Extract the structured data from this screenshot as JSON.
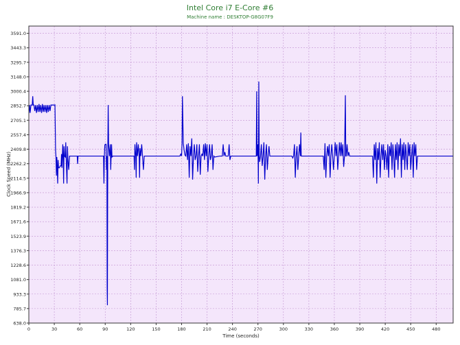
{
  "chart_data": {
    "type": "line",
    "title": "Intel Core i7 E-Core #6",
    "subtitle": "Machine name : DESKTOP-G8G07F9",
    "xlabel": "Time (seconds)",
    "ylabel": "Clock Speed (MHz)",
    "xlim": [
      0,
      500
    ],
    "ylim": [
      638.0,
      3665.0
    ],
    "x_ticks": [
      "0",
      "30",
      "60",
      "90",
      "120",
      "150",
      "180",
      "210",
      "240",
      "270",
      "300",
      "330",
      "360",
      "390",
      "420",
      "450",
      "480"
    ],
    "y_ticks": [
      "638.0",
      "785.7",
      "933.3",
      "1081.0",
      "1228.6",
      "1376.3",
      "1523.9",
      "1671.6",
      "1819.2",
      "1966.9",
      "2114.5",
      "2262.2",
      "2409.8",
      "2557.4",
      "2705.1",
      "2852.7",
      "3000.4",
      "3148.0",
      "3295.7",
      "3443.3",
      "3591.0"
    ],
    "grid": true,
    "colors": {
      "line": "#0000cc",
      "plot_bg": "#f4e6fb",
      "grid": "#c090d0",
      "title": "#2e7d32"
    },
    "series": [
      {
        "values": [
          [
            0,
            2780
          ],
          [
            0.8,
            2860
          ],
          [
            1.5,
            2780
          ],
          [
            2.5,
            2860
          ],
          [
            4,
            2860
          ],
          [
            4.6,
            2950
          ],
          [
            5.2,
            2860
          ],
          [
            6,
            2860
          ],
          [
            7,
            2800
          ],
          [
            8,
            2860
          ],
          [
            9,
            2780
          ],
          [
            10,
            2860
          ],
          [
            11,
            2790
          ],
          [
            12,
            2870
          ],
          [
            13,
            2790
          ],
          [
            14,
            2860
          ],
          [
            15,
            2780
          ],
          [
            16,
            2870
          ],
          [
            17,
            2790
          ],
          [
            18,
            2860
          ],
          [
            19,
            2790
          ],
          [
            20,
            2860
          ],
          [
            21,
            2780
          ],
          [
            22,
            2860
          ],
          [
            23,
            2790
          ],
          [
            24,
            2860
          ],
          [
            25,
            2800
          ],
          [
            26,
            2860
          ],
          [
            27,
            2860
          ],
          [
            28,
            2860
          ],
          [
            29,
            2860
          ],
          [
            30,
            2860
          ],
          [
            30.8,
            2862
          ],
          [
            31.5,
            2400
          ],
          [
            32,
            2330
          ],
          [
            32.5,
            2140
          ],
          [
            33,
            2330
          ],
          [
            33.5,
            2220
          ],
          [
            34,
            2060
          ],
          [
            34.5,
            2300
          ],
          [
            35,
            2220
          ],
          [
            36,
            2220
          ],
          [
            37,
            2240
          ],
          [
            38,
            2240
          ],
          [
            38.5,
            2360
          ],
          [
            39,
            2220
          ],
          [
            40,
            2460
          ],
          [
            40.5,
            2320
          ],
          [
            41,
            2060
          ],
          [
            41.5,
            2440
          ],
          [
            42,
            2340
          ],
          [
            43,
            2330
          ],
          [
            43.5,
            2480
          ],
          [
            44,
            2320
          ],
          [
            45,
            2060
          ],
          [
            45.5,
            2440
          ],
          [
            46,
            2320
          ],
          [
            47,
            2200
          ],
          [
            48,
            2340
          ],
          [
            50,
            2340
          ],
          [
            56,
            2340
          ],
          [
            57,
            2340
          ],
          [
            57.5,
            2260
          ],
          [
            58,
            2340
          ],
          [
            60,
            2340
          ],
          [
            62,
            2340
          ],
          [
            75,
            2340
          ],
          [
            80,
            2340
          ],
          [
            87,
            2340
          ],
          [
            88,
            2340
          ],
          [
            88.5,
            2060
          ],
          [
            89,
            2340
          ],
          [
            89.5,
            2450
          ],
          [
            90,
            2460
          ],
          [
            91,
            2460
          ],
          [
            91.5,
            2200
          ],
          [
            92,
            2340
          ],
          [
            92.3,
            1000
          ],
          [
            92.6,
            820
          ],
          [
            93,
            2340
          ],
          [
            93.5,
            2860
          ],
          [
            94,
            2460
          ],
          [
            95,
            2340
          ],
          [
            96,
            2460
          ],
          [
            96.5,
            2200
          ],
          [
            97,
            2340
          ],
          [
            97.5,
            2460
          ],
          [
            98,
            2330
          ],
          [
            99,
            2340
          ],
          [
            102,
            2340
          ],
          [
            112,
            2340
          ],
          [
            122,
            2340
          ],
          [
            124,
            2340
          ],
          [
            124.5,
            2200
          ],
          [
            125,
            2460
          ],
          [
            126,
            2340
          ],
          [
            126.5,
            2120
          ],
          [
            127,
            2480
          ],
          [
            128,
            2340
          ],
          [
            129,
            2460
          ],
          [
            130,
            2340
          ],
          [
            130.5,
            2120
          ],
          [
            131,
            2420
          ],
          [
            132,
            2340
          ],
          [
            133,
            2460
          ],
          [
            134,
            2340
          ],
          [
            135,
            2200
          ],
          [
            136,
            2340
          ],
          [
            140,
            2340
          ],
          [
            150,
            2340
          ],
          [
            160,
            2340
          ],
          [
            170,
            2340
          ],
          [
            178,
            2340
          ],
          [
            179,
            2360
          ],
          [
            180,
            2340
          ],
          [
            180.5,
            2460
          ],
          [
            181,
            2950
          ],
          [
            182,
            2470
          ],
          [
            183,
            2400
          ],
          [
            184,
            2350
          ],
          [
            185,
            2340
          ],
          [
            186,
            2460
          ],
          [
            187,
            2300
          ],
          [
            188,
            2470
          ],
          [
            189,
            2120
          ],
          [
            190,
            2440
          ],
          [
            191,
            2340
          ],
          [
            192,
            2520
          ],
          [
            193,
            2100
          ],
          [
            194,
            2340
          ],
          [
            195,
            2460
          ],
          [
            196,
            2300
          ],
          [
            197,
            2340
          ],
          [
            198,
            2460
          ],
          [
            199,
            2180
          ],
          [
            200,
            2340
          ],
          [
            201,
            2460
          ],
          [
            202,
            2150
          ],
          [
            203,
            2340
          ],
          [
            204,
            2360
          ],
          [
            205,
            2340
          ],
          [
            206,
            2460
          ],
          [
            207,
            2300
          ],
          [
            208,
            2470
          ],
          [
            209,
            2340
          ],
          [
            210,
            2460
          ],
          [
            211,
            2180
          ],
          [
            212,
            2340
          ],
          [
            213,
            2460
          ],
          [
            214,
            2300
          ],
          [
            215,
            2340
          ],
          [
            216,
            2460
          ],
          [
            217,
            2200
          ],
          [
            218,
            2340
          ],
          [
            219,
            2330
          ],
          [
            225,
            2340
          ],
          [
            228,
            2340
          ],
          [
            229,
            2460
          ],
          [
            230,
            2340
          ],
          [
            231,
            2380
          ],
          [
            232,
            2340
          ],
          [
            235,
            2340
          ],
          [
            236,
            2460
          ],
          [
            237,
            2300
          ],
          [
            238,
            2340
          ],
          [
            245,
            2340
          ],
          [
            255,
            2340
          ],
          [
            265,
            2340
          ],
          [
            268,
            2340
          ],
          [
            268.5,
            3000
          ],
          [
            269,
            2340
          ],
          [
            270,
            2460
          ],
          [
            270.5,
            2060
          ],
          [
            271,
            3100
          ],
          [
            271.5,
            2340
          ],
          [
            272,
            2280
          ],
          [
            273,
            2340
          ],
          [
            274,
            2460
          ],
          [
            275,
            2240
          ],
          [
            276,
            2340
          ],
          [
            277,
            2480
          ],
          [
            278,
            2100
          ],
          [
            279,
            2340
          ],
          [
            280,
            2460
          ],
          [
            281,
            2200
          ],
          [
            282,
            2340
          ],
          [
            283,
            2440
          ],
          [
            284,
            2340
          ],
          [
            290,
            2340
          ],
          [
            305,
            2340
          ],
          [
            310,
            2340
          ],
          [
            311,
            2320
          ],
          [
            312,
            2340
          ],
          [
            313,
            2460
          ],
          [
            314,
            2120
          ],
          [
            315,
            2340
          ],
          [
            316,
            2440
          ],
          [
            317,
            2200
          ],
          [
            318,
            2340
          ],
          [
            319,
            2460
          ],
          [
            320,
            2340
          ],
          [
            320.5,
            2580
          ],
          [
            321,
            2340
          ],
          [
            330,
            2340
          ],
          [
            340,
            2340
          ],
          [
            347,
            2340
          ],
          [
            348,
            2200
          ],
          [
            349,
            2470
          ],
          [
            350,
            2120
          ],
          [
            351,
            2340
          ],
          [
            352,
            2440
          ],
          [
            353,
            2340
          ],
          [
            354,
            2460
          ],
          [
            355,
            2120
          ],
          [
            356,
            2340
          ],
          [
            357,
            2460
          ],
          [
            358,
            2340
          ],
          [
            359,
            2200
          ],
          [
            360,
            2340
          ],
          [
            361,
            2480
          ],
          [
            362,
            2340
          ],
          [
            363,
            2460
          ],
          [
            364,
            2200
          ],
          [
            365,
            2340
          ],
          [
            366,
            2480
          ],
          [
            367,
            2340
          ],
          [
            368,
            2480
          ],
          [
            369,
            2340
          ],
          [
            370,
            2460
          ],
          [
            371,
            2230
          ],
          [
            372,
            2340
          ],
          [
            373,
            2960
          ],
          [
            373.5,
            2340
          ],
          [
            374,
            2340
          ],
          [
            375,
            2460
          ],
          [
            376,
            2340
          ],
          [
            377,
            2380
          ],
          [
            378,
            2340
          ],
          [
            385,
            2340
          ],
          [
            395,
            2340
          ],
          [
            400,
            2340
          ],
          [
            405,
            2340
          ],
          [
            406,
            2120
          ],
          [
            407,
            2460
          ],
          [
            408,
            2300
          ],
          [
            409,
            2480
          ],
          [
            410,
            2060
          ],
          [
            411,
            2420
          ],
          [
            412,
            2300
          ],
          [
            413,
            2480
          ],
          [
            414,
            2120
          ],
          [
            415,
            2340
          ],
          [
            416,
            2460
          ],
          [
            417,
            2300
          ],
          [
            418,
            2460
          ],
          [
            419,
            2200
          ],
          [
            420,
            2400
          ],
          [
            421,
            2340
          ],
          [
            422,
            2200
          ],
          [
            423,
            2460
          ],
          [
            424,
            2120
          ],
          [
            425,
            2440
          ],
          [
            426,
            2340
          ],
          [
            427,
            2480
          ],
          [
            428,
            2200
          ],
          [
            429,
            2460
          ],
          [
            430,
            2340
          ],
          [
            431,
            2120
          ],
          [
            432,
            2460
          ],
          [
            433,
            2300
          ],
          [
            434,
            2480
          ],
          [
            435,
            2200
          ],
          [
            436,
            2460
          ],
          [
            437,
            2340
          ],
          [
            438,
            2520
          ],
          [
            439,
            2120
          ],
          [
            440,
            2460
          ],
          [
            441,
            2300
          ],
          [
            442,
            2480
          ],
          [
            443,
            2200
          ],
          [
            444,
            2460
          ],
          [
            445,
            2340
          ],
          [
            446,
            2200
          ],
          [
            447,
            2480
          ],
          [
            448,
            2340
          ],
          [
            449,
            2460
          ],
          [
            450,
            2200
          ],
          [
            451,
            2340
          ],
          [
            452,
            2460
          ],
          [
            453,
            2120
          ],
          [
            454,
            2480
          ],
          [
            455,
            2340
          ],
          [
            456,
            2460
          ],
          [
            457,
            2200
          ],
          [
            458,
            2340
          ],
          [
            460,
            2340
          ],
          [
            470,
            2340
          ],
          [
            480,
            2340
          ],
          [
            500,
            2340
          ]
        ]
      }
    ]
  }
}
